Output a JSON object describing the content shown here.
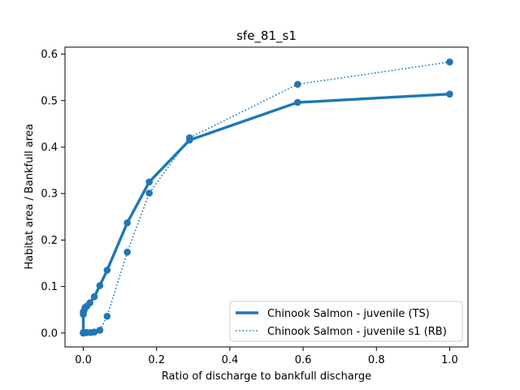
{
  "chart_data": {
    "type": "line",
    "title": "sfe_81_s1",
    "xlabel": "Ratio of discharge to bankfull discharge",
    "ylabel": "Habitat area / Bankfull area",
    "xlim": [
      -0.05,
      1.05
    ],
    "ylim": [
      -0.03,
      0.615
    ],
    "xticks": [
      0.0,
      0.2,
      0.4,
      0.6,
      0.8,
      1.0
    ],
    "xtick_labels": [
      "0.0",
      "0.2",
      "0.4",
      "0.6",
      "0.8",
      "1.0"
    ],
    "yticks": [
      0.0,
      0.1,
      0.2,
      0.3,
      0.4,
      0.5,
      0.6
    ],
    "ytick_labels": [
      "0.0",
      "0.1",
      "0.2",
      "0.3",
      "0.4",
      "0.5",
      "0.6"
    ],
    "grid": false,
    "legend_position": "lower-right",
    "series": [
      {
        "name": "Chinook Salmon - juvenile (TS)",
        "style": "solid",
        "color": "#1f77b4",
        "x": [
          0.0,
          0.0,
          0.0,
          0.0,
          0.002,
          0.005,
          0.01,
          0.018,
          0.03,
          0.045,
          0.065,
          0.12,
          0.18,
          0.29,
          0.585,
          1.0
        ],
        "y": [
          0.0,
          0.0,
          0.04,
          0.045,
          0.048,
          0.055,
          0.058,
          0.065,
          0.078,
          0.102,
          0.135,
          0.237,
          0.325,
          0.415,
          0.496,
          0.514
        ]
      },
      {
        "name": "Chinook Salmon - juvenile s1 (RB)",
        "style": "dotted",
        "color": "#1f77b4",
        "x": [
          0.0,
          0.0,
          0.0,
          0.005,
          0.01,
          0.02,
          0.03,
          0.045,
          0.065,
          0.12,
          0.18,
          0.29,
          0.585,
          1.0
        ],
        "y": [
          0.0,
          0.0,
          0.001,
          0.001,
          0.001,
          0.001,
          0.002,
          0.006,
          0.036,
          0.174,
          0.301,
          0.42,
          0.535,
          0.583
        ]
      }
    ]
  }
}
